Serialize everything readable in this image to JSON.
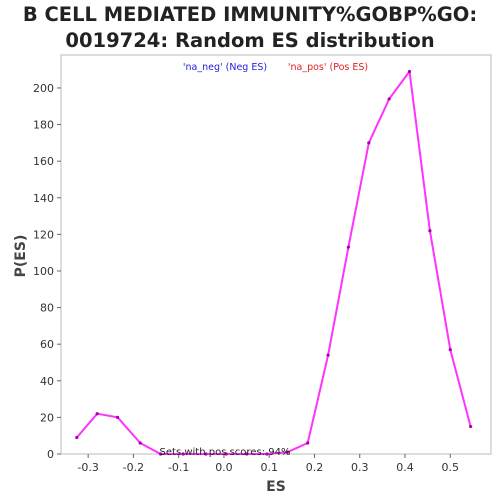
{
  "chart_data": {
    "type": "line",
    "title_line1": "B CELL MEDIATED IMMUNITY%GOBP%GO:",
    "title_line2": "0019724: Random ES distribution",
    "xlabel": "ES",
    "ylabel": "P(ES)",
    "xlim": [
      -0.36,
      0.59
    ],
    "ylim": [
      0,
      218
    ],
    "xticks": [
      -0.3,
      -0.2,
      -0.1,
      0.0,
      0.1,
      0.2,
      0.3,
      0.4,
      0.5
    ],
    "xtick_labels": [
      "-0.3",
      "-0.2",
      "-0.1",
      "0.0",
      "0.1",
      "0.2",
      "0.3",
      "0.4",
      "0.5"
    ],
    "yticks": [
      0,
      20,
      40,
      60,
      80,
      100,
      120,
      140,
      160,
      180,
      200
    ],
    "ytick_labels": [
      "0",
      "20",
      "40",
      "60",
      "80",
      "100",
      "120",
      "140",
      "160",
      "180",
      "200"
    ],
    "grid": false,
    "legend": [
      {
        "label": "'na_neg' (Neg ES)",
        "color": "#2222dd"
      },
      {
        "label": "'na_pos' (Pos ES)",
        "color": "#dd2222"
      }
    ],
    "annotation": "Sets with pos scores: 94%",
    "series": [
      {
        "color": "#ff33ff",
        "x": [
          -0.325,
          -0.28,
          -0.235,
          -0.185,
          -0.14,
          -0.09,
          -0.04,
          0.005,
          0.05,
          0.095,
          0.14,
          0.185,
          0.23,
          0.275,
          0.32,
          0.365,
          0.41,
          0.455,
          0.5,
          0.545
        ],
        "y": [
          9,
          22,
          20,
          6,
          0,
          0,
          0,
          0,
          0,
          0,
          1,
          6,
          54,
          113,
          170,
          194,
          209,
          122,
          57,
          15
        ]
      }
    ]
  }
}
